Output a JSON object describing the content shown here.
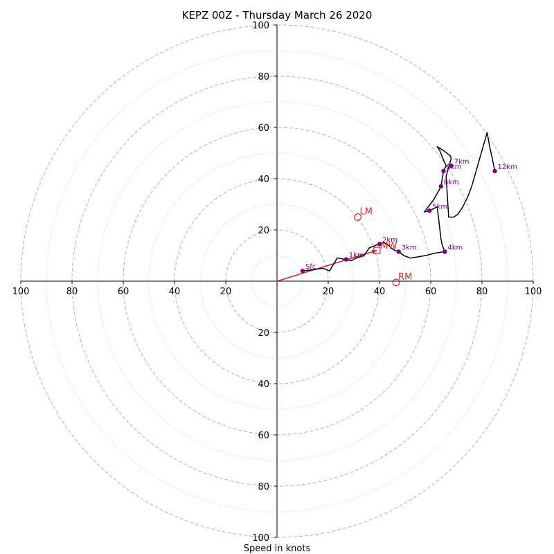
{
  "chart_data": {
    "type": "scatter",
    "title": "KEPZ 00Z - Thursday March 26 2020",
    "xlabel": "Speed in knots",
    "ylabel": "",
    "xlim": [
      -100,
      100
    ],
    "ylim": [
      -100,
      100
    ],
    "ring_major": [
      20,
      40,
      60,
      80,
      100
    ],
    "ring_minor": [
      10,
      30,
      50,
      70,
      90
    ],
    "axis_ticks": [
      20,
      40,
      60,
      80,
      100
    ],
    "axis_tick_labels": [
      "20",
      "40",
      "60",
      "80",
      "100"
    ],
    "colors": {
      "hodograph_line": "#000000",
      "height_marker": "#800080",
      "storm_motion": "#d62728",
      "ring_major": "#b0b0b0",
      "ring_minor": "#cfcfcf"
    },
    "hodograph": {
      "u": [
        10,
        18,
        20.5,
        23.5,
        24,
        26.5,
        29,
        31,
        34,
        36,
        38.5,
        40,
        41.5,
        43,
        44.5,
        46,
        47.5,
        49.5,
        52,
        55,
        58,
        62,
        65.5,
        64.5,
        64,
        63,
        62.5,
        59.5,
        57.5,
        59,
        61,
        63.5,
        64,
        65,
        66,
        64.5,
        63.5,
        62.5,
        65,
        67.5,
        68,
        66,
        67,
        69,
        70.5,
        72.5,
        74.5,
        76,
        78,
        80,
        82,
        83,
        84,
        85
      ],
      "v": [
        4,
        5,
        4,
        9,
        9,
        8.5,
        8,
        9,
        10,
        13,
        14,
        14.5,
        15,
        14.5,
        13,
        12,
        11.5,
        10,
        9,
        9.5,
        10,
        11,
        11.5,
        14,
        16.5,
        25,
        29,
        27.5,
        27,
        29,
        31.5,
        36,
        37,
        43,
        45,
        48.5,
        51,
        52.5,
        51,
        49,
        48,
        41,
        25,
        25,
        26,
        29,
        33,
        37,
        44,
        51,
        58,
        52.5,
        48,
        43
      ]
    },
    "height_markers": [
      {
        "label": "Sfc",
        "u": 10,
        "v": 4
      },
      {
        "label": "1km",
        "u": 27,
        "v": 8.5
      },
      {
        "label": "2km",
        "u": 40,
        "v": 14.5
      },
      {
        "label": "3km",
        "u": 47.5,
        "v": 11.5
      },
      {
        "label": "4km",
        "u": 65.5,
        "v": 11.5
      },
      {
        "label": "5km",
        "u": 59.5,
        "v": 27.5
      },
      {
        "label": "6km",
        "u": 64,
        "v": 37
      },
      {
        "label": "7km",
        "u": 68,
        "v": 45
      },
      {
        "label": "8km",
        "u": 65,
        "v": 43
      },
      {
        "label": "12km",
        "u": 85,
        "v": 43
      }
    ],
    "storm_motion": {
      "MW": {
        "label": "MW",
        "u": 39,
        "v": 12
      },
      "LM": {
        "label": "LM",
        "u": 31.5,
        "v": 25
      },
      "RM": {
        "label": "RM",
        "u": 46.5,
        "v": -0.5
      }
    }
  }
}
